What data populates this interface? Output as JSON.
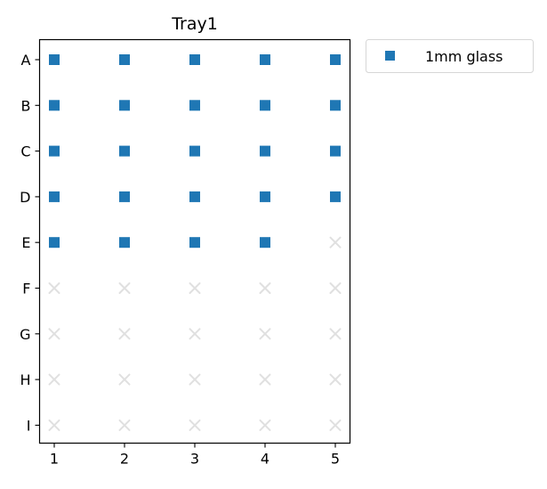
{
  "chart_data": {
    "type": "scatter",
    "title": "Tray1",
    "xlabel": "",
    "ylabel": "",
    "x_ticks": [
      "1",
      "2",
      "3",
      "4",
      "5"
    ],
    "y_ticks": [
      "A",
      "B",
      "C",
      "D",
      "E",
      "F",
      "G",
      "H",
      "I"
    ],
    "xlim": [
      0.85,
      5.2
    ],
    "grid": false,
    "legend_placement": "outside-top-right",
    "series": [
      {
        "name": "1mm glass",
        "marker": "square",
        "color": "#1f77b4",
        "points": [
          {
            "x": 1,
            "y": "A"
          },
          {
            "x": 2,
            "y": "A"
          },
          {
            "x": 3,
            "y": "A"
          },
          {
            "x": 4,
            "y": "A"
          },
          {
            "x": 5,
            "y": "A"
          },
          {
            "x": 1,
            "y": "B"
          },
          {
            "x": 2,
            "y": "B"
          },
          {
            "x": 3,
            "y": "B"
          },
          {
            "x": 4,
            "y": "B"
          },
          {
            "x": 5,
            "y": "B"
          },
          {
            "x": 1,
            "y": "C"
          },
          {
            "x": 2,
            "y": "C"
          },
          {
            "x": 3,
            "y": "C"
          },
          {
            "x": 4,
            "y": "C"
          },
          {
            "x": 5,
            "y": "C"
          },
          {
            "x": 1,
            "y": "D"
          },
          {
            "x": 2,
            "y": "D"
          },
          {
            "x": 3,
            "y": "D"
          },
          {
            "x": 4,
            "y": "D"
          },
          {
            "x": 5,
            "y": "D"
          },
          {
            "x": 1,
            "y": "E"
          },
          {
            "x": 2,
            "y": "E"
          },
          {
            "x": 3,
            "y": "E"
          },
          {
            "x": 4,
            "y": "E"
          }
        ]
      }
    ],
    "empty_slots": {
      "marker": "x",
      "color": "#e0e0e0",
      "points": [
        {
          "x": 5,
          "y": "E"
        },
        {
          "x": 1,
          "y": "F"
        },
        {
          "x": 2,
          "y": "F"
        },
        {
          "x": 3,
          "y": "F"
        },
        {
          "x": 4,
          "y": "F"
        },
        {
          "x": 5,
          "y": "F"
        },
        {
          "x": 1,
          "y": "G"
        },
        {
          "x": 2,
          "y": "G"
        },
        {
          "x": 3,
          "y": "G"
        },
        {
          "x": 4,
          "y": "G"
        },
        {
          "x": 5,
          "y": "G"
        },
        {
          "x": 1,
          "y": "H"
        },
        {
          "x": 2,
          "y": "H"
        },
        {
          "x": 3,
          "y": "H"
        },
        {
          "x": 4,
          "y": "H"
        },
        {
          "x": 5,
          "y": "H"
        },
        {
          "x": 1,
          "y": "I"
        },
        {
          "x": 2,
          "y": "I"
        },
        {
          "x": 3,
          "y": "I"
        },
        {
          "x": 4,
          "y": "I"
        },
        {
          "x": 5,
          "y": "I"
        }
      ]
    }
  }
}
